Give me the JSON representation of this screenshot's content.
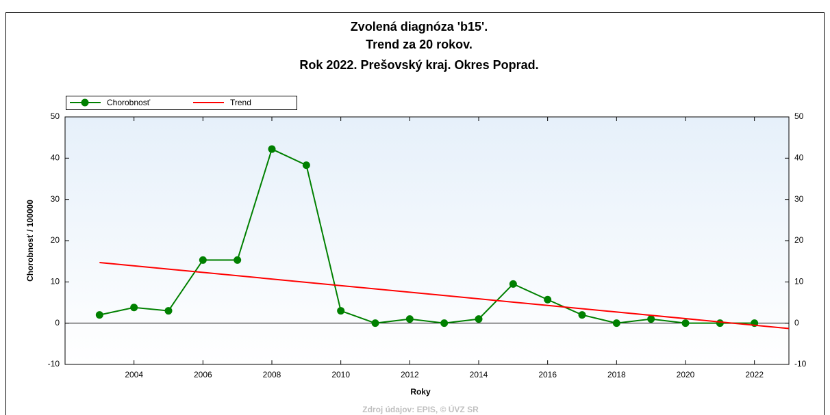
{
  "chart_data": {
    "type": "line",
    "title": [
      "Zvolená diagnóza 'b15'.",
      "Trend za 20 rokov.",
      "Rok 2022. Prešovský kraj. Okres Poprad."
    ],
    "x_label": "Roky",
    "y_label": "Chorobnosť / 100000",
    "source": "Zdroj údajov: EPIS, © ÚVZ SR",
    "x": [
      2003,
      2004,
      2005,
      2006,
      2007,
      2008,
      2009,
      2010,
      2011,
      2012,
      2013,
      2014,
      2015,
      2016,
      2017,
      2018,
      2019,
      2020,
      2021,
      2022
    ],
    "series": [
      {
        "name": "Chorobnosť",
        "color": "#008000",
        "values": [
          2,
          3.8,
          3,
          15.3,
          15.3,
          42.2,
          38.3,
          3,
          0,
          1,
          0,
          1,
          9.5,
          5.7,
          2,
          0,
          1,
          0,
          0,
          0
        ]
      },
      {
        "name": "Trend",
        "color": "#ff0000",
        "x": [
          2003,
          2023
        ],
        "values": [
          14.7,
          -1.3
        ]
      }
    ],
    "xlim": [
      2002,
      2023
    ],
    "xticks": [
      2004,
      2006,
      2008,
      2010,
      2012,
      2014,
      2016,
      2018,
      2020,
      2022
    ],
    "ylim": [
      -10,
      50
    ],
    "yticks": [
      -10,
      0,
      10,
      20,
      30,
      40,
      50
    ],
    "legend": "top-left"
  }
}
